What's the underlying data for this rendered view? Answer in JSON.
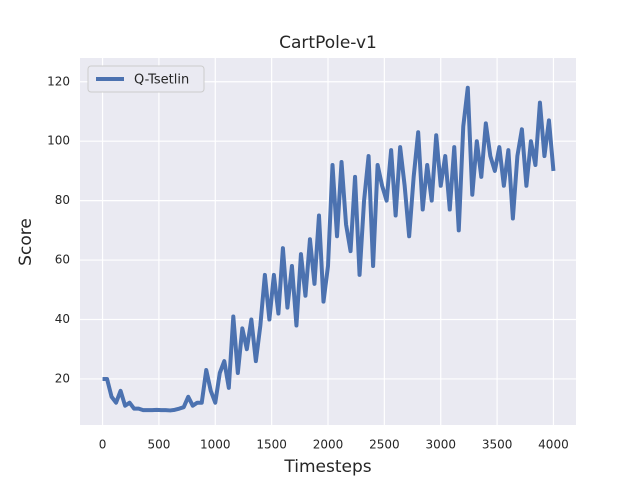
{
  "chart_data": {
    "type": "line",
    "title": "CartPole-v1",
    "x_label": "Timesteps",
    "y_label": "Score",
    "x": [
      0,
      40,
      80,
      120,
      160,
      200,
      240,
      280,
      320,
      360,
      400,
      440,
      480,
      520,
      560,
      600,
      640,
      680,
      720,
      760,
      800,
      840,
      880,
      920,
      960,
      1000,
      1040,
      1080,
      1120,
      1160,
      1200,
      1240,
      1280,
      1320,
      1360,
      1400,
      1440,
      1480,
      1520,
      1560,
      1600,
      1640,
      1680,
      1720,
      1760,
      1800,
      1840,
      1880,
      1920,
      1960,
      2000,
      2040,
      2080,
      2120,
      2160,
      2200,
      2240,
      2280,
      2320,
      2360,
      2400,
      2440,
      2480,
      2520,
      2560,
      2600,
      2640,
      2680,
      2720,
      2760,
      2800,
      2840,
      2880,
      2920,
      2960,
      3000,
      3040,
      3080,
      3120,
      3160,
      3200,
      3240,
      3280,
      3320,
      3360,
      3400,
      3440,
      3480,
      3520,
      3560,
      3600,
      3640,
      3680,
      3720,
      3760,
      3800,
      3840,
      3880,
      3920,
      3960,
      4000
    ],
    "series": [
      {
        "name": "Q-Tsetlin",
        "color": "#4c72b0",
        "values": [
          20,
          20,
          14,
          12,
          16,
          11,
          12,
          10,
          10,
          9.5,
          9.5,
          9.5,
          9.6,
          9.5,
          9.5,
          9.4,
          9.6,
          10,
          10.5,
          14,
          11,
          12,
          12,
          23,
          16,
          12,
          22,
          26,
          17,
          41,
          22,
          37,
          30,
          40,
          26,
          38,
          55,
          40,
          55,
          42,
          64,
          44,
          58,
          38,
          62,
          48,
          67,
          52,
          75,
          46,
          58,
          92,
          68,
          93,
          72,
          63,
          88,
          55,
          80,
          95,
          58,
          92,
          85,
          80,
          97,
          75,
          98,
          85,
          68,
          88,
          103,
          77,
          92,
          80,
          102,
          85,
          95,
          77,
          98,
          70,
          105,
          118,
          82,
          100,
          88,
          106,
          95,
          90,
          98,
          85,
          97,
          74,
          95,
          104,
          85,
          100,
          92,
          113,
          95,
          107,
          90
        ]
      }
    ],
    "xlim": [
      -200,
      4200
    ],
    "ylim": [
      4.5,
      128
    ],
    "xticks": [
      0,
      500,
      1000,
      1500,
      2000,
      2500,
      3000,
      3500,
      4000
    ],
    "yticks": [
      20,
      40,
      60,
      80,
      100,
      120
    ],
    "grid": true,
    "legend": "upper-left",
    "background": "#eaeaf2"
  }
}
